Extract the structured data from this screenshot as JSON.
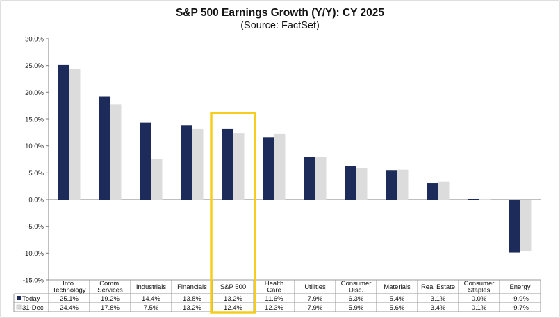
{
  "chart_data": {
    "type": "bar",
    "title": "S&P 500 Earnings Growth (Y/Y): CY 2025",
    "subtitle": "(Source: FactSet)",
    "xlabel": "",
    "ylabel": "",
    "ylim": [
      -15,
      30
    ],
    "yticks": [
      30,
      25,
      20,
      15,
      10,
      5,
      0,
      -5,
      -10,
      -15
    ],
    "ytick_labels": [
      "30.0%",
      "25.0%",
      "20.0%",
      "15.0%",
      "10.0%",
      "5.0%",
      "0.0%",
      "-5.0%",
      "-10.0%",
      "-15.0%"
    ],
    "categories": [
      [
        "Info.",
        "Technology"
      ],
      [
        "Comm.",
        "Services"
      ],
      [
        "Industrials"
      ],
      [
        "Financials"
      ],
      [
        "S&P 500"
      ],
      [
        "Health",
        "Care"
      ],
      [
        "Utilities"
      ],
      [
        "Consumer",
        "Disc."
      ],
      [
        "Materials"
      ],
      [
        "Real Estate"
      ],
      [
        "Consumer",
        "Staples"
      ],
      [
        "Energy"
      ]
    ],
    "highlight_category": "S&P 500",
    "series": [
      {
        "name": "Today",
        "color": "#1c2b59",
        "values": [
          25.1,
          19.2,
          14.4,
          13.8,
          13.2,
          11.6,
          7.9,
          6.3,
          5.4,
          3.1,
          0.0,
          -9.9
        ],
        "labels": [
          "25.1%",
          "19.2%",
          "14.4%",
          "13.8%",
          "13.2%",
          "11.6%",
          "7.9%",
          "6.3%",
          "5.4%",
          "3.1%",
          "0.0%",
          "-9.9%"
        ]
      },
      {
        "name": "31-Dec",
        "color": "#dcdcdc",
        "values": [
          24.4,
          17.8,
          7.5,
          13.2,
          12.4,
          12.3,
          7.9,
          5.9,
          5.6,
          3.4,
          0.1,
          -9.7
        ],
        "labels": [
          "24.4%",
          "17.8%",
          "7.5%",
          "13.2%",
          "12.4%",
          "12.3%",
          "7.9%",
          "5.9%",
          "5.6%",
          "3.4%",
          "0.1%",
          "-9.7%"
        ]
      }
    ],
    "highlight_color": "#f5cd1e",
    "grid": false,
    "legend": "data-table"
  }
}
